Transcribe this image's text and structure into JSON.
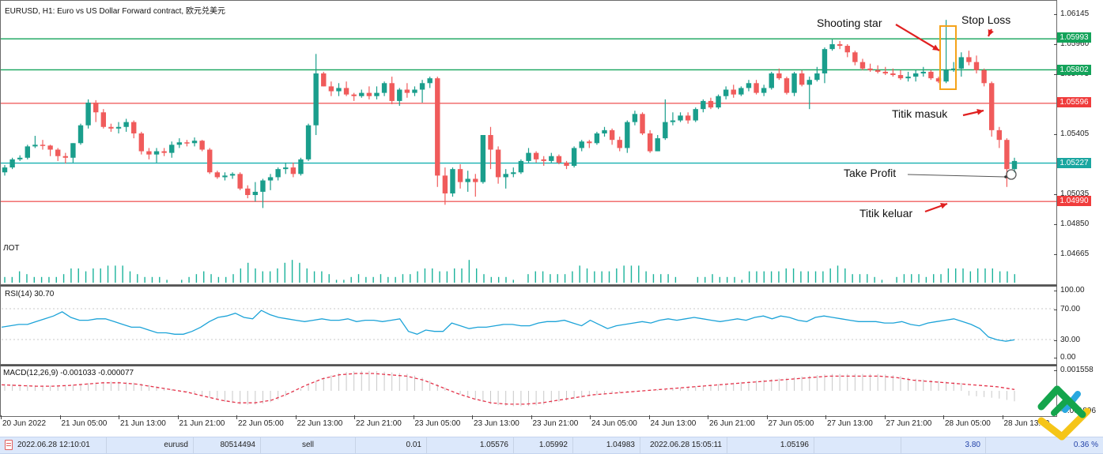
{
  "chart": {
    "title": "EURUSD, H1:  Euro vs US Dollar Forward contract, 欧元兑美元",
    "symbol": "EURUSD",
    "timeframe": "H1",
    "colors": {
      "bull": "#1a9e8c",
      "bear": "#f05b5b",
      "sl_line": "#13a35a",
      "tp_line": "#16b0b0",
      "entry_line": "#f06060",
      "rsi_line": "#1ca3d8",
      "macd_signal": "#e5334a",
      "macd_hist": "#c8c8c8",
      "volume": "#1ab39b",
      "highlight_box": "#f5a31a",
      "arrow": "#e02020"
    },
    "price_scale": {
      "ticks": [
        "1.06145",
        "1.05960",
        "1.05775",
        "1.05405",
        "1.05035",
        "1.04850",
        "1.04665"
      ],
      "tick_values": [
        1.06145,
        1.0596,
        1.05775,
        1.05405,
        1.05035,
        1.0485,
        1.04665
      ]
    },
    "price_labels": [
      {
        "value": "1.05993",
        "price": 1.05993,
        "color": "#13a35a",
        "role": "stop-loss"
      },
      {
        "value": "1.05802",
        "price": 1.05802,
        "color": "#13a35a",
        "role": "resistance"
      },
      {
        "value": "1.05596",
        "price": 1.05596,
        "color": "#f03c3c",
        "role": "entry"
      },
      {
        "value": "1.05227",
        "price": 1.05227,
        "color": "#1aa6a0",
        "role": "take-profit"
      },
      {
        "value": "1.04990",
        "price": 1.0499,
        "color": "#f03c3c",
        "role": "exit"
      }
    ],
    "volume_label": "ЛОТ",
    "annotations": {
      "shooting_star": "Shooting star",
      "stop_loss": "Stop Loss",
      "entry": "Titik masuk",
      "take_profit": "Take Profit",
      "exit": "Titik keluar"
    }
  },
  "rsi": {
    "label": "RSI(14) 30.70",
    "ticks": [
      "100.00",
      "70.00",
      "30.00",
      "0.00"
    ],
    "tick_values": [
      100,
      70,
      30,
      0
    ]
  },
  "macd": {
    "label": "MACD(12,26,9) -0.001033 -0.000077",
    "ticks": [
      "0.001558",
      "-0.001896"
    ]
  },
  "time_axis": {
    "labels": [
      "20 Jun 2022",
      "21 Jun 05:00",
      "21 Jun 13:00",
      "21 Jun 21:00",
      "22 Jun 05:00",
      "22 Jun 13:00",
      "22 Jun 21:00",
      "23 Jun 05:00",
      "23 Jun 13:00",
      "23 Jun 21:00",
      "24 Jun 05:00",
      "24 Jun 13:00",
      "26 Jun 21:00",
      "27 Jun 05:00",
      "27 Jun 13:00",
      "27 Jun 21:00",
      "28 Jun 05:00",
      "28 Jun 13:00"
    ]
  },
  "trade_row": {
    "open_time": "2022.06.28 12:10:01",
    "symbol": "eurusd",
    "ticket": "80514494",
    "type": "sell",
    "volume": "0.01",
    "open_price": "1.05576",
    "sl": "1.05992",
    "tp": "1.04983",
    "close_time": "2022.06.28 15:05:11",
    "close_price": "1.05196",
    "empty": "",
    "profit": "3.80",
    "percent": "0.36 %"
  },
  "chart_data": {
    "type": "candlestick",
    "title": "EURUSD, H1",
    "candles": [
      [
        1.0517,
        1.05215,
        1.0515,
        1.052
      ],
      [
        1.052,
        1.0526,
        1.0519,
        1.0525
      ],
      [
        1.0525,
        1.05275,
        1.0524,
        1.0526
      ],
      [
        1.0526,
        1.0534,
        1.0525,
        1.0533
      ],
      [
        1.0533,
        1.05395,
        1.0532,
        1.0534
      ],
      [
        1.0534,
        1.0537,
        1.0531,
        1.05335
      ],
      [
        1.05335,
        1.0534,
        1.0527,
        1.0531
      ],
      [
        1.0531,
        1.0532,
        1.0524,
        1.0527
      ],
      [
        1.0527,
        1.0529,
        1.05225,
        1.0526
      ],
      [
        1.0526,
        1.0535,
        1.0523,
        1.0535
      ],
      [
        1.0535,
        1.0547,
        1.0534,
        1.0546
      ],
      [
        1.0546,
        1.0562,
        1.0544,
        1.056
      ],
      [
        1.056,
        1.05615,
        1.0548,
        1.0554
      ],
      [
        1.0554,
        1.0556,
        1.0544,
        1.0545
      ],
      [
        1.0545,
        1.0547,
        1.0542,
        1.0544
      ],
      [
        1.0544,
        1.0548,
        1.0541,
        1.0545
      ],
      [
        1.0545,
        1.055,
        1.0542,
        1.0548
      ],
      [
        1.0548,
        1.0549,
        1.0538,
        1.0541
      ],
      [
        1.0541,
        1.0542,
        1.0528,
        1.053
      ],
      [
        1.053,
        1.0532,
        1.0525,
        1.0528
      ],
      [
        1.0528,
        1.0532,
        1.0523,
        1.053
      ],
      [
        1.053,
        1.0532,
        1.0527,
        1.0529
      ],
      [
        1.0529,
        1.0536,
        1.0526,
        1.0534
      ],
      [
        1.0534,
        1.0538,
        1.0532,
        1.05355
      ],
      [
        1.05355,
        1.0537,
        1.0533,
        1.0535
      ],
      [
        1.0535,
        1.05385,
        1.0533,
        1.05365
      ],
      [
        1.05365,
        1.0537,
        1.053,
        1.0531
      ],
      [
        1.0531,
        1.0532,
        1.0516,
        1.0517
      ],
      [
        1.0517,
        1.0518,
        1.0513,
        1.0514
      ],
      [
        1.0514,
        1.0517,
        1.0512,
        1.0515
      ],
      [
        1.0515,
        1.0517,
        1.0513,
        1.0516
      ],
      [
        1.0516,
        1.0517,
        1.0506,
        1.0507
      ],
      [
        1.0507,
        1.0509,
        1.0501,
        1.0503
      ],
      [
        1.0503,
        1.0511,
        1.0499,
        1.0505
      ],
      [
        1.0505,
        1.0513,
        1.0495,
        1.0512
      ],
      [
        1.0512,
        1.0516,
        1.0506,
        1.0514
      ],
      [
        1.0514,
        1.052,
        1.0512,
        1.0519
      ],
      [
        1.0519,
        1.0523,
        1.0516,
        1.052
      ],
      [
        1.052,
        1.0523,
        1.0514,
        1.0516
      ],
      [
        1.0516,
        1.0526,
        1.0515,
        1.0525
      ],
      [
        1.0525,
        1.0547,
        1.0524,
        1.0546
      ],
      [
        1.0546,
        1.059,
        1.054,
        1.0578
      ],
      [
        1.0578,
        1.0579,
        1.057,
        1.057
      ],
      [
        1.057,
        1.0573,
        1.0564,
        1.0567
      ],
      [
        1.0567,
        1.0572,
        1.0564,
        1.0569
      ],
      [
        1.0569,
        1.0573,
        1.0564,
        1.0565
      ],
      [
        1.0565,
        1.0566,
        1.0561,
        1.0564
      ],
      [
        1.0564,
        1.0568,
        1.0563,
        1.0566
      ],
      [
        1.0566,
        1.057,
        1.0562,
        1.0564
      ],
      [
        1.0564,
        1.057,
        1.0562,
        1.0566
      ],
      [
        1.0566,
        1.0573,
        1.0564,
        1.0572
      ],
      [
        1.0572,
        1.0576,
        1.0559,
        1.0561
      ],
      [
        1.0561,
        1.0569,
        1.0558,
        1.0568
      ],
      [
        1.0568,
        1.0572,
        1.0563,
        1.0566
      ],
      [
        1.0566,
        1.057,
        1.0564,
        1.0568
      ],
      [
        1.0568,
        1.0574,
        1.056,
        1.0572
      ],
      [
        1.0572,
        1.0576,
        1.0569,
        1.0575
      ],
      [
        1.0575,
        1.0576,
        1.0508,
        1.0515
      ],
      [
        1.0515,
        1.052,
        1.0497,
        1.0504
      ],
      [
        1.0504,
        1.052,
        1.0502,
        1.0519
      ],
      [
        1.0519,
        1.0522,
        1.0507,
        1.0511
      ],
      [
        1.0511,
        1.0518,
        1.0505,
        1.0513
      ],
      [
        1.0513,
        1.0516,
        1.0502,
        1.0511
      ],
      [
        1.0511,
        1.054,
        1.051,
        1.054
      ],
      [
        1.054,
        1.0545,
        1.0519,
        1.0531
      ],
      [
        1.0531,
        1.0533,
        1.051,
        1.0514
      ],
      [
        1.0514,
        1.0519,
        1.0507,
        1.0516
      ],
      [
        1.0516,
        1.052,
        1.0514,
        1.0517
      ],
      [
        1.0517,
        1.0525,
        1.0516,
        1.0524
      ],
      [
        1.0524,
        1.0532,
        1.0523,
        1.0529
      ],
      [
        1.0529,
        1.053,
        1.0523,
        1.0525
      ],
      [
        1.0525,
        1.0527,
        1.0521,
        1.0524
      ],
      [
        1.0524,
        1.0529,
        1.0523,
        1.0527
      ],
      [
        1.0527,
        1.0528,
        1.0522,
        1.0523
      ],
      [
        1.0523,
        1.0524,
        1.0519,
        1.0521
      ],
      [
        1.0521,
        1.0533,
        1.052,
        1.0532
      ],
      [
        1.0532,
        1.0537,
        1.053,
        1.0536
      ],
      [
        1.0536,
        1.0537,
        1.0532,
        1.0535
      ],
      [
        1.0535,
        1.0542,
        1.0534,
        1.0541
      ],
      [
        1.0541,
        1.0545,
        1.0539,
        1.0543
      ],
      [
        1.0543,
        1.0544,
        1.0534,
        1.0537
      ],
      [
        1.0537,
        1.0539,
        1.053,
        1.0532
      ],
      [
        1.0532,
        1.0549,
        1.0529,
        1.0548
      ],
      [
        1.0548,
        1.0555,
        1.0546,
        1.0553
      ],
      [
        1.0553,
        1.0554,
        1.054,
        1.0541
      ],
      [
        1.0541,
        1.0543,
        1.0529,
        1.053
      ],
      [
        1.053,
        1.054,
        1.053,
        1.0538
      ],
      [
        1.0538,
        1.0562,
        1.0537,
        1.0548
      ],
      [
        1.0548,
        1.0554,
        1.0546,
        1.0549
      ],
      [
        1.0549,
        1.0554,
        1.0548,
        1.0552
      ],
      [
        1.0552,
        1.0554,
        1.0547,
        1.0549
      ],
      [
        1.0549,
        1.0557,
        1.0548,
        1.0556
      ],
      [
        1.0556,
        1.0562,
        1.0554,
        1.0561
      ],
      [
        1.0561,
        1.0563,
        1.0556,
        1.0557
      ],
      [
        1.0557,
        1.0565,
        1.0556,
        1.0564
      ],
      [
        1.0564,
        1.057,
        1.0562,
        1.0568
      ],
      [
        1.0568,
        1.0571,
        1.0563,
        1.0565
      ],
      [
        1.0565,
        1.057,
        1.0564,
        1.0569
      ],
      [
        1.0569,
        1.0574,
        1.0567,
        1.0572
      ],
      [
        1.0572,
        1.0574,
        1.0565,
        1.0566
      ],
      [
        1.0566,
        1.0571,
        1.0564,
        1.0569
      ],
      [
        1.0569,
        1.0579,
        1.0568,
        1.0578
      ],
      [
        1.0578,
        1.0581,
        1.0574,
        1.0575
      ],
      [
        1.0575,
        1.0576,
        1.0565,
        1.0566
      ],
      [
        1.0566,
        1.0579,
        1.0564,
        1.0578
      ],
      [
        1.0578,
        1.058,
        1.057,
        1.0571
      ],
      [
        1.0571,
        1.0576,
        1.0556,
        1.0574
      ],
      [
        1.0574,
        1.0582,
        1.0573,
        1.0578
      ],
      [
        1.0578,
        1.0594,
        1.0572,
        1.0593
      ],
      [
        1.0593,
        1.0599,
        1.0592,
        1.0596
      ],
      [
        1.0596,
        1.0598,
        1.0593,
        1.0595
      ],
      [
        1.0595,
        1.0596,
        1.0588,
        1.0591
      ],
      [
        1.0591,
        1.0592,
        1.0583,
        1.0585
      ],
      [
        1.0585,
        1.0587,
        1.058,
        1.0581
      ],
      [
        1.0581,
        1.0584,
        1.0579,
        1.058
      ],
      [
        1.058,
        1.0583,
        1.0578,
        1.0579
      ],
      [
        1.0579,
        1.0582,
        1.0577,
        1.0578
      ],
      [
        1.0578,
        1.0581,
        1.0576,
        1.0577
      ],
      [
        1.0577,
        1.058,
        1.0574,
        1.0575
      ],
      [
        1.0575,
        1.0579,
        1.0573,
        1.0576
      ],
      [
        1.0576,
        1.058,
        1.0573,
        1.0578
      ],
      [
        1.0578,
        1.0582,
        1.0576,
        1.0579
      ],
      [
        1.0579,
        1.058,
        1.0574,
        1.0575
      ],
      [
        1.0575,
        1.0576,
        1.0572,
        1.0573
      ],
      [
        1.0573,
        1.0611,
        1.0572,
        1.058
      ],
      [
        1.058,
        1.0585,
        1.0579,
        1.0581
      ],
      [
        1.0581,
        1.0591,
        1.0576,
        1.0588
      ],
      [
        1.0588,
        1.0592,
        1.0583,
        1.0585
      ],
      [
        1.0585,
        1.0589,
        1.0578,
        1.058
      ],
      [
        1.058,
        1.0581,
        1.057,
        1.0572
      ],
      [
        1.0572,
        1.0573,
        1.0539,
        1.0543
      ],
      [
        1.0543,
        1.0545,
        1.0532,
        1.0537
      ],
      [
        1.0537,
        1.0538,
        1.0508,
        1.0519
      ],
      [
        1.0519,
        1.0526,
        1.0517,
        1.0524
      ]
    ],
    "volume": [
      2,
      2,
      4,
      3,
      2,
      2,
      2,
      2,
      3,
      5,
      5,
      4,
      5,
      5,
      6,
      6,
      6,
      4,
      3,
      2,
      2,
      2,
      1,
      0,
      1,
      2,
      3,
      4,
      3,
      2,
      2,
      3,
      5,
      7,
      5,
      4,
      4,
      5,
      7,
      8,
      7,
      5,
      4,
      4,
      3,
      1,
      1,
      2,
      3,
      2,
      2,
      3,
      2,
      2,
      3,
      3,
      4,
      5,
      5,
      4,
      4,
      5,
      5,
      8,
      5,
      3,
      2,
      2,
      2,
      1,
      0,
      3,
      4,
      4,
      3,
      3,
      3,
      4,
      6,
      5,
      4,
      4,
      4,
      5,
      6,
      6,
      6,
      4,
      3,
      3,
      3,
      2,
      0,
      0,
      2,
      2,
      3,
      2,
      2,
      2,
      1,
      4,
      4,
      4,
      4,
      4,
      5,
      5,
      4,
      4,
      4,
      4,
      5,
      6,
      5,
      3,
      3,
      3,
      2,
      1,
      0,
      2,
      3,
      3,
      3,
      2,
      3,
      3,
      5,
      5,
      5,
      4,
      5,
      5,
      5,
      4,
      4,
      3
    ],
    "rsi_values": [
      48,
      50,
      52,
      52,
      56,
      60,
      64,
      70,
      62,
      58,
      58,
      60,
      60,
      56,
      52,
      48,
      48,
      44,
      40,
      40,
      38,
      38,
      42,
      48,
      56,
      62,
      64,
      68,
      62,
      60,
      72,
      66,
      62,
      60,
      58,
      56,
      58,
      60,
      58,
      58,
      60,
      56,
      58,
      58,
      56,
      58,
      60,
      42,
      38,
      44,
      42,
      42,
      54,
      50,
      46,
      48,
      48,
      50,
      52,
      52,
      50,
      50,
      54,
      56,
      56,
      58,
      54,
      50,
      58,
      52,
      46,
      50,
      52,
      54,
      56,
      54,
      58,
      60,
      58,
      60,
      62,
      60,
      58,
      56,
      58,
      60,
      58,
      62,
      64,
      60,
      64,
      62,
      58,
      56,
      62,
      64,
      62,
      60,
      58,
      56,
      56,
      56,
      54,
      54,
      56,
      52,
      50,
      54,
      56,
      58,
      60,
      56,
      52,
      46,
      34,
      30,
      28,
      30
    ],
    "macd_signal": [
      0.00045,
      0.0004,
      0.00035,
      0.00035,
      0.0004,
      0.0005,
      0.0006,
      0.0006,
      0.0005,
      0.0003,
      0.0001,
      -0.0001,
      -0.0004,
      -0.0007,
      -0.0009,
      -0.0009,
      -0.0007,
      -0.0002,
      0.0004,
      0.0009,
      0.0012,
      0.0013,
      0.0013,
      0.0012,
      0.0011,
      0.0008,
      0.0003,
      -0.0002,
      -0.0006,
      -0.0009,
      -0.001,
      -0.001,
      -0.0009,
      -0.0007,
      -0.0005,
      -0.0003,
      -0.0002,
      -0.0001,
      0.0,
      0.0001,
      0.0002,
      0.0003,
      0.0004,
      0.0005,
      0.0006,
      0.0007,
      0.0008,
      0.0009,
      0.001,
      0.0011,
      0.0011,
      0.0011,
      0.0011,
      0.001,
      0.0008,
      0.0007,
      0.0006,
      0.0005,
      0.0004,
      0.0003,
      0.0001
    ]
  }
}
